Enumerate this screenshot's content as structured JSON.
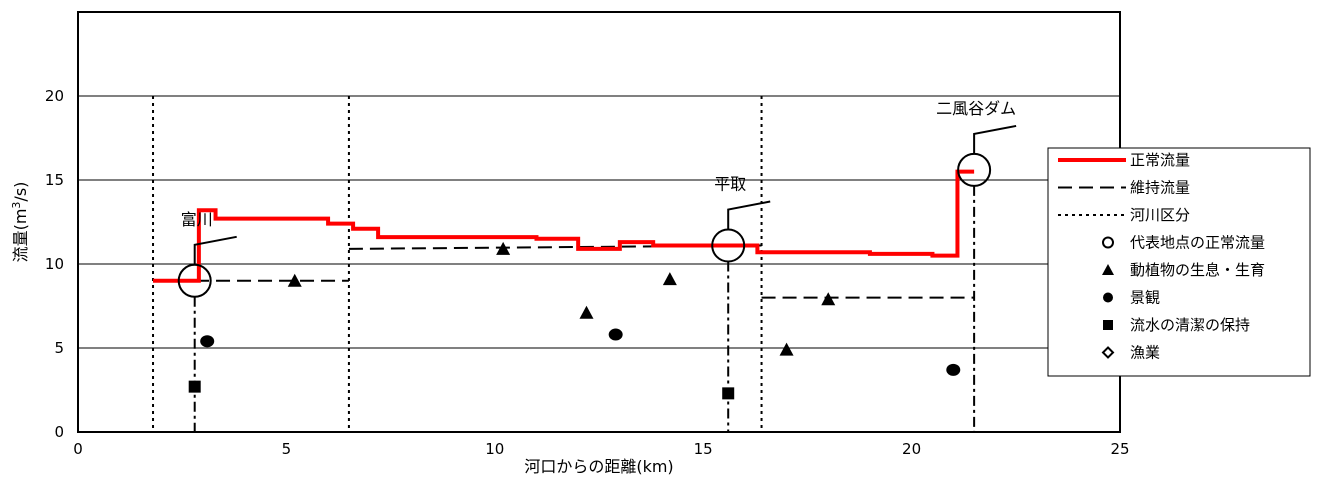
{
  "chart_data": {
    "type": "scatter",
    "xlabel": "河口からの距離(km)",
    "ylabel_parts": [
      "流量(m",
      "3",
      "/s)"
    ],
    "xlim": [
      0,
      25
    ],
    "ylim": [
      0,
      25
    ],
    "x_ticks": [
      0,
      5,
      10,
      15,
      20,
      25
    ],
    "y_ticks": [
      0,
      5,
      10,
      15,
      20
    ],
    "gridlines_y": [
      5,
      10,
      15,
      20
    ],
    "grid": "horizontal",
    "legend_position": "right",
    "legend": [
      {
        "key": "normal_flow",
        "label": "正常流量"
      },
      {
        "key": "maintenance_flow",
        "label": "維持流量"
      },
      {
        "key": "river_section",
        "label": "河川区分"
      },
      {
        "key": "representative",
        "label": "代表地点の正常流量"
      },
      {
        "key": "flora_fauna",
        "label": "動植物の生息・生育"
      },
      {
        "key": "landscape",
        "label": "景観"
      },
      {
        "key": "water_cleanliness",
        "label": "流水の清潔の保持"
      },
      {
        "key": "fishery",
        "label": "漁業"
      }
    ],
    "colors": {
      "normal_flow": "#ff0000",
      "axis": "#000000",
      "grid": "#000000"
    },
    "normal_flow_line": [
      [
        1.8,
        9.0
      ],
      [
        2.9,
        9.0
      ],
      [
        2.9,
        13.2
      ],
      [
        3.3,
        13.2
      ],
      [
        3.3,
        12.7
      ],
      [
        6.0,
        12.7
      ],
      [
        6.0,
        12.4
      ],
      [
        6.6,
        12.4
      ],
      [
        6.6,
        12.1
      ],
      [
        7.2,
        12.1
      ],
      [
        7.2,
        11.6
      ],
      [
        11.0,
        11.6
      ],
      [
        11.0,
        11.5
      ],
      [
        12.0,
        11.5
      ],
      [
        12.0,
        10.9
      ],
      [
        13.0,
        10.9
      ],
      [
        13.0,
        11.3
      ],
      [
        13.8,
        11.3
      ],
      [
        13.8,
        11.1
      ],
      [
        16.3,
        11.1
      ],
      [
        16.3,
        10.7
      ],
      [
        19.0,
        10.7
      ],
      [
        19.0,
        10.6
      ],
      [
        20.5,
        10.6
      ],
      [
        20.5,
        10.5
      ],
      [
        21.1,
        10.5
      ],
      [
        21.1,
        15.5
      ],
      [
        21.5,
        15.5
      ]
    ],
    "maintenance_flow_segments": [
      [
        [
          1.8,
          9.0
        ],
        [
          6.5,
          9.0
        ]
      ],
      [
        [
          6.5,
          10.9
        ],
        [
          16.4,
          11.1
        ]
      ],
      [
        [
          16.4,
          8.0
        ],
        [
          21.5,
          8.0
        ]
      ]
    ],
    "river_section_lines_x": [
      1.8,
      6.5,
      16.4
    ],
    "representative_points": [
      {
        "name": "富川",
        "x": 2.8,
        "y": 9.0
      },
      {
        "name": "平取",
        "x": 15.6,
        "y": 11.1
      },
      {
        "name": "二風谷ダム",
        "x": 21.5,
        "y": 15.6
      }
    ],
    "flora_fauna": [
      [
        5.2,
        9.0
      ],
      [
        10.2,
        10.9
      ],
      [
        12.2,
        7.1
      ],
      [
        14.2,
        9.1
      ],
      [
        17.0,
        4.9
      ],
      [
        18.0,
        7.9
      ]
    ],
    "landscape": [
      [
        3.1,
        5.4
      ],
      [
        12.9,
        5.8
      ],
      [
        21.0,
        3.7
      ]
    ],
    "water_cleanliness": [
      [
        2.8,
        2.7
      ],
      [
        15.6,
        2.3
      ]
    ],
    "fishery": []
  }
}
